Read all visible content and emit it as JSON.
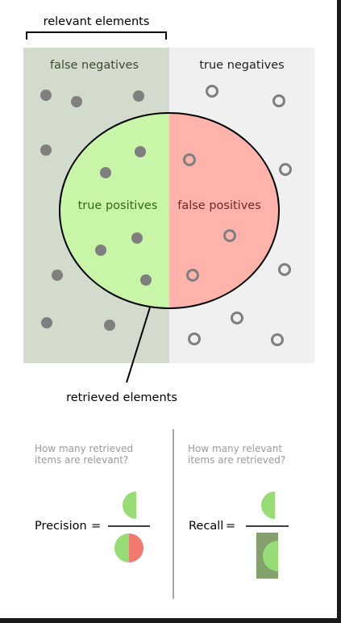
{
  "diagram": {
    "relevant_elements_label": "relevant elements",
    "false_negatives_label": "false negatives",
    "true_negatives_label": "true negatives",
    "true_positives_label": "true positives",
    "false_positives_label": "false positives",
    "retrieved_elements_label": "retrieved elements"
  },
  "precision": {
    "question_line1": "How many retrieved",
    "question_line2": "items are relevant?",
    "label": "Precision",
    "equals": "="
  },
  "recall": {
    "question_line1": "How many relevant",
    "question_line2": "items are retrieved?",
    "label": "Recall",
    "equals": "="
  },
  "colors": {
    "relevant_region": "#d3dbcd",
    "irrelevant_region": "#f0f0f0",
    "true_positive_fill": "#c8f5a8",
    "false_positive_fill": "#ffb3ab",
    "dot": "#7f7f7f",
    "formula_green": "#98dc78",
    "formula_red": "#f07a70",
    "recall_bar": "#84a06c",
    "dark_text": "#3b4a2e",
    "tp_text": "#2f6a12",
    "fp_text": "#7a2520",
    "question_text": "#9a9a9a"
  }
}
